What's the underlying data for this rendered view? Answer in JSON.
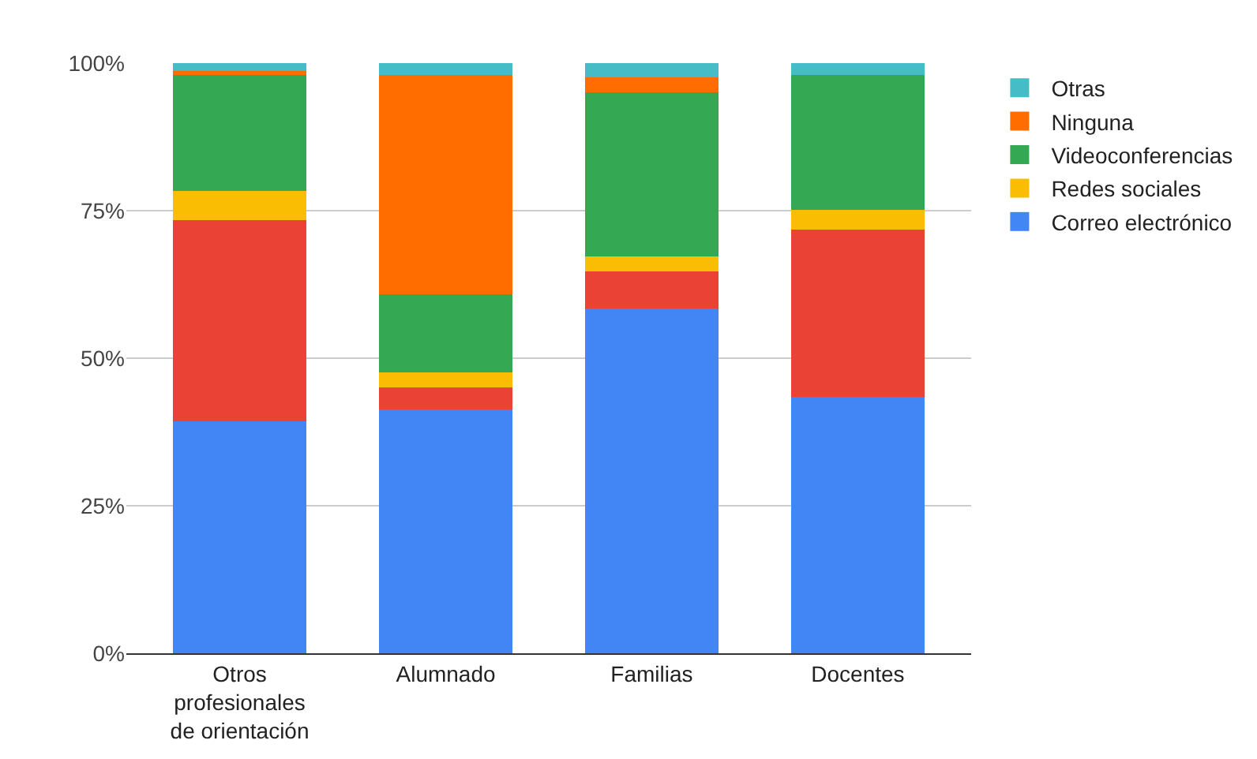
{
  "chart_data": {
    "type": "bar",
    "stacked": true,
    "categories": [
      "Otros profesionales de orientación",
      "Alumnado",
      "Familias",
      "Docentes"
    ],
    "series": [
      {
        "name": "Correo electrónico",
        "color": "#4285f4",
        "values": [
          39.3,
          41.3,
          58.4,
          43.5
        ]
      },
      {
        "color": "#ea4335",
        "values": [
          34.1,
          3.8,
          6.3,
          28.3
        ]
      },
      {
        "name": "Redes sociales",
        "color": "#fbbc04",
        "values": [
          5.0,
          2.5,
          2.5,
          3.4
        ]
      },
      {
        "name": "Videoconferencias",
        "color": "#34a853",
        "values": [
          19.6,
          13.2,
          27.8,
          22.8
        ]
      },
      {
        "name": "Ninguna",
        "color": "#ff6d01",
        "values": [
          0.7,
          37.2,
          2.6,
          0
        ]
      },
      {
        "name": "Otras",
        "color": "#46bdc6",
        "values": [
          1.3,
          2.0,
          2.4,
          2.0
        ]
      }
    ],
    "ylim": [
      0,
      100
    ],
    "yticks": [
      {
        "value": 0,
        "label": "0%"
      },
      {
        "value": 25,
        "label": "25%"
      },
      {
        "value": 50,
        "label": "50%"
      },
      {
        "value": 75,
        "label": "75%"
      },
      {
        "value": 100,
        "label": "100%"
      }
    ],
    "grid": "y",
    "legend": "right"
  }
}
